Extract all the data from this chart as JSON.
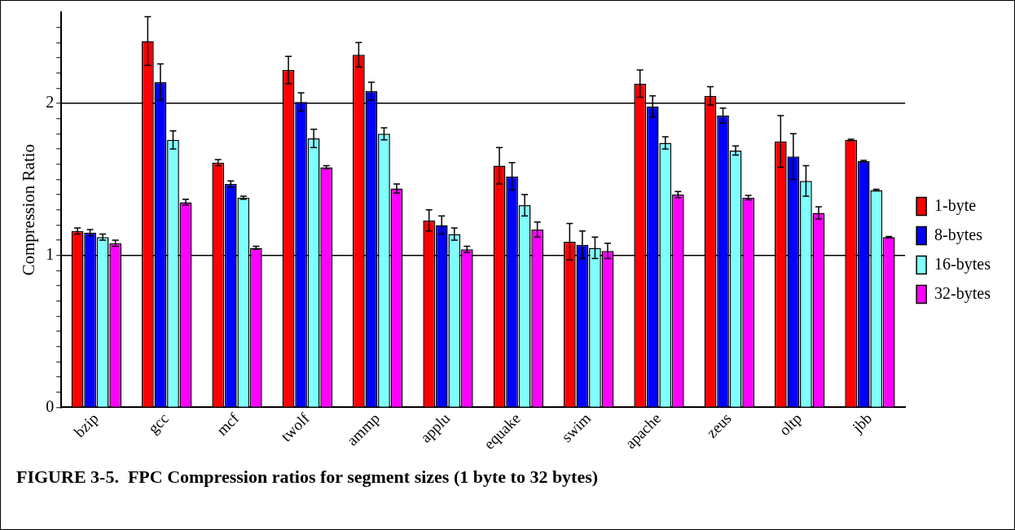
{
  "chart_data": {
    "type": "bar",
    "title": "FIGURE 3-5.  FPC Compression ratios for segment sizes (1 byte to 32 bytes)",
    "ylabel": "Compression Ratio",
    "categories": [
      "bzip",
      "gcc",
      "mcf",
      "twolf",
      "ammp",
      "applu",
      "equake",
      "swim",
      "apache",
      "zeus",
      "oltp",
      "jbb"
    ],
    "series": [
      {
        "name": "1-byte",
        "color": "#ff0000",
        "values": [
          1.16,
          2.41,
          1.61,
          2.22,
          2.32,
          1.23,
          1.59,
          1.09,
          2.13,
          2.05,
          1.75,
          1.76
        ],
        "errors": [
          0.02,
          0.16,
          0.02,
          0.09,
          0.08,
          0.07,
          0.12,
          0.12,
          0.09,
          0.06,
          0.17,
          0.005
        ]
      },
      {
        "name": "8-bytes",
        "color": "#0000ff",
        "values": [
          1.15,
          2.14,
          1.47,
          2.01,
          2.08,
          1.2,
          1.52,
          1.07,
          1.98,
          1.92,
          1.65,
          1.62
        ],
        "errors": [
          0.02,
          0.12,
          0.02,
          0.06,
          0.06,
          0.06,
          0.09,
          0.09,
          0.07,
          0.05,
          0.15,
          0.005
        ]
      },
      {
        "name": "16-bytes",
        "color": "#80ffff",
        "values": [
          1.12,
          1.76,
          1.38,
          1.77,
          1.8,
          1.14,
          1.33,
          1.05,
          1.74,
          1.69,
          1.49,
          1.43
        ],
        "errors": [
          0.02,
          0.06,
          0.01,
          0.06,
          0.04,
          0.04,
          0.07,
          0.07,
          0.04,
          0.03,
          0.1,
          0.005
        ]
      },
      {
        "name": "32-bytes",
        "color": "#ff00ff",
        "values": [
          1.08,
          1.35,
          1.05,
          1.58,
          1.44,
          1.04,
          1.17,
          1.03,
          1.4,
          1.38,
          1.28,
          1.12
        ],
        "errors": [
          0.02,
          0.02,
          0.01,
          0.01,
          0.03,
          0.02,
          0.05,
          0.05,
          0.02,
          0.015,
          0.04,
          0.005
        ]
      }
    ],
    "ylim": [
      0,
      2.6
    ],
    "yticks": [
      0,
      {
        "value": 0.1,
        "label": null
      },
      {
        "value": 0.2,
        "label": null
      },
      {
        "value": 0.3,
        "label": null
      },
      {
        "value": 0.4,
        "label": null
      },
      {
        "value": 0.5,
        "label": null
      },
      {
        "value": 0.6,
        "label": null
      },
      {
        "value": 0.7,
        "label": null
      },
      {
        "value": 0.8,
        "label": null
      },
      {
        "value": 0.9,
        "label": null
      },
      1,
      {
        "value": 1.1,
        "label": null
      },
      {
        "value": 1.2,
        "label": null
      },
      {
        "value": 1.3,
        "label": null
      },
      {
        "value": 1.4,
        "label": null
      },
      {
        "value": 1.5,
        "label": null
      },
      {
        "value": 1.6,
        "label": null
      },
      {
        "value": 1.7,
        "label": null
      },
      {
        "value": 1.8,
        "label": null
      },
      {
        "value": 1.9,
        "label": null
      },
      2,
      {
        "value": 2.1,
        "label": null
      },
      {
        "value": 2.2,
        "label": null
      },
      {
        "value": 2.3,
        "label": null
      },
      {
        "value": 2.4,
        "label": null
      },
      {
        "value": 2.5,
        "label": null
      }
    ],
    "grid": "y",
    "legend": "right"
  }
}
